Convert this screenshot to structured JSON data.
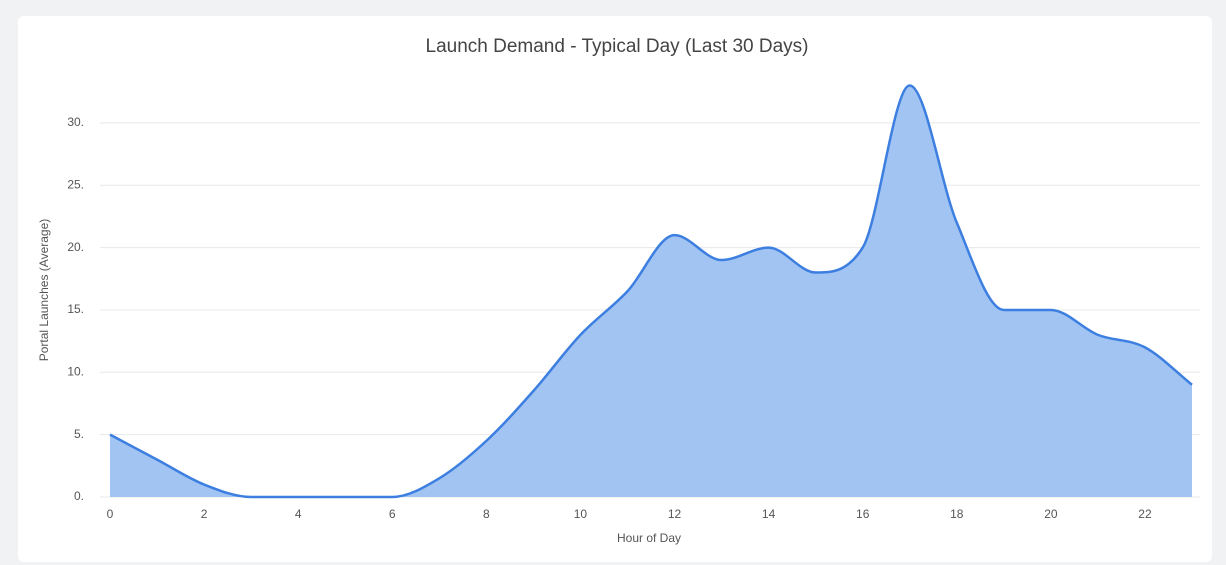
{
  "chart_data": {
    "type": "area",
    "title": "Launch Demand - Typical Day (Last 30 Days)",
    "x_label": "Hour of Day",
    "y_label": "Portal Launches (Average)",
    "x": [
      0,
      1,
      2,
      3,
      4,
      5,
      6,
      7,
      8,
      9,
      10,
      11,
      12,
      13,
      14,
      15,
      16,
      17,
      18,
      19,
      20,
      21,
      22,
      23
    ],
    "series": [
      {
        "name": "Portal Launches",
        "color": "#3d7fe0",
        "fill": "#a2c4f3",
        "values": [
          5,
          3,
          1,
          0,
          0,
          0,
          0,
          1.5,
          4.5,
          8.5,
          13,
          16.5,
          21,
          19,
          20,
          18,
          20,
          33,
          22,
          15,
          15,
          13,
          12,
          9
        ]
      }
    ],
    "xlim": [
      0,
      23
    ],
    "xticks": [
      0,
      2,
      4,
      6,
      8,
      10,
      12,
      14,
      16,
      18,
      20,
      22
    ],
    "ylim": [
      0,
      34
    ],
    "yticks": [
      {
        "value": 0,
        "label": "0."
      },
      {
        "value": 5,
        "label": "5."
      },
      {
        "value": 10,
        "label": "10."
      },
      {
        "value": 15,
        "label": "15."
      },
      {
        "value": 20,
        "label": "20."
      },
      {
        "value": 25,
        "label": "25."
      },
      {
        "value": 30,
        "label": "30."
      }
    ],
    "grid": true
  }
}
